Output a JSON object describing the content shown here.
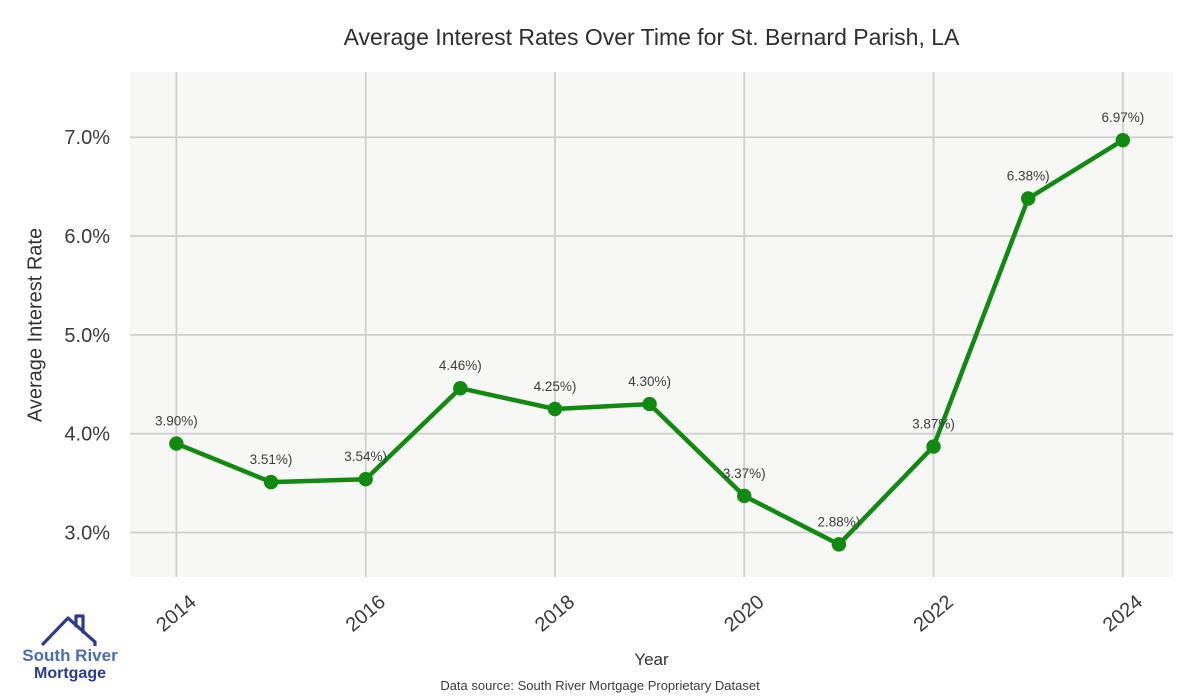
{
  "chart_data": {
    "type": "line",
    "title": "Average Interest Rates Over Time for St. Bernard Parish, LA",
    "xlabel": "Year",
    "ylabel": "Average Interest Rate",
    "x": [
      2014,
      2015,
      2016,
      2017,
      2018,
      2019,
      2020,
      2021,
      2022,
      2023,
      2024
    ],
    "series": [
      {
        "name": "Average Interest Rate",
        "values": [
          3.9,
          3.51,
          3.54,
          4.46,
          4.25,
          4.3,
          3.37,
          2.88,
          3.87,
          6.38,
          6.97
        ]
      }
    ],
    "point_labels": [
      "3.90%)",
      "3.51%)",
      "3.54%)",
      "4.46%)",
      "4.25%)",
      "4.30%)",
      "3.37%)",
      "2.88%)",
      "3.87%)",
      "6.38%)",
      "6.97%)"
    ],
    "x_ticks": {
      "values": [
        2014,
        2016,
        2018,
        2020,
        2022,
        2024
      ],
      "labels": [
        "2014",
        "2016",
        "2018",
        "2020",
        "2022",
        "2024"
      ]
    },
    "y_ticks": {
      "values": [
        3,
        4,
        5,
        6,
        7
      ],
      "labels": [
        "3.0%",
        "4.0%",
        "5.0%",
        "6.0%",
        "7.0%"
      ]
    },
    "xlim": [
      2013.51,
      2024.53
    ],
    "ylim": [
      2.55,
      7.66
    ],
    "grid": true,
    "legend": "none",
    "colors": {
      "line": "#128a12",
      "panel_bg": "#f7f7f5",
      "grid": "#cfcfcf",
      "tick_label": "#3a3a3a",
      "point_label": "#3d3d3d",
      "title": "#2e2e2e"
    }
  },
  "footer": {
    "source_note": "Data source: South River Mortgage Proprietary Dataset"
  },
  "logo": {
    "line1": "South River",
    "line2": "Mortgage",
    "color_line1": "#4a6cb3",
    "color_line2": "#2d3a8f",
    "icon_color": "#2b3990"
  }
}
